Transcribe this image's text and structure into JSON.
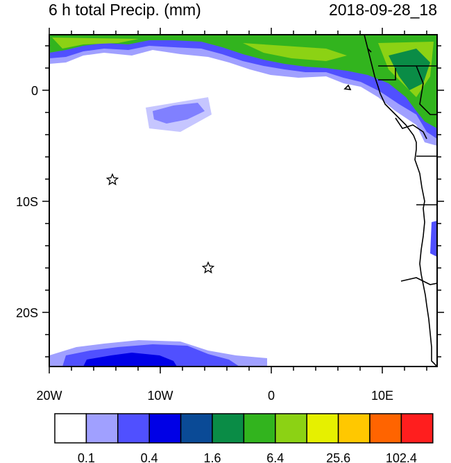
{
  "title_left": "6 h total Precip. (mm)",
  "title_right": "2018-09-28_18",
  "lat_labels": [
    "0",
    "10S",
    "20S"
  ],
  "lon_labels": [
    "20W",
    "10W",
    "0",
    "10E"
  ],
  "colorbar": {
    "labels": [
      "0.1",
      "0.4",
      "1.6",
      "6.4",
      "25.6",
      "102.4"
    ],
    "colors": [
      "#ffffff",
      "#a0a0ff",
      "#5050ff",
      "#0000e6",
      "#0a4a96",
      "#0a8c46",
      "#32b41e",
      "#8cd214",
      "#e6f000",
      "#ffc800",
      "#ff6400",
      "#ff1e1e"
    ]
  },
  "markers": [
    {
      "name": "star-1"
    },
    {
      "name": "star-2"
    }
  ],
  "precip_colors": {
    "light": "#a0a0ff",
    "blue": "#5050ff",
    "dark_blue": "#0000e6",
    "green": "#0a8c46",
    "light_green": "#32b41e",
    "yellow_green": "#8cd214"
  }
}
